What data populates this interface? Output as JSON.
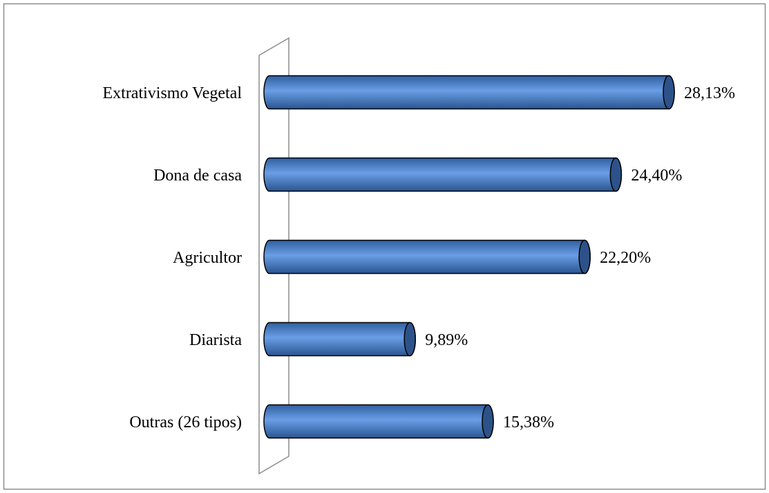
{
  "chart_data": {
    "type": "bar",
    "orientation": "horizontal",
    "categories": [
      "Extrativismo Vegetal",
      "Dona de casa",
      "Agricultor",
      "Diarista",
      "Outras (26 tipos)"
    ],
    "values": [
      28.13,
      24.4,
      22.2,
      9.89,
      15.38
    ],
    "value_labels": [
      "28,13%",
      "24,40%",
      "22,20%",
      "9,89%",
      "15,38%"
    ],
    "color": "#4f81bd"
  }
}
